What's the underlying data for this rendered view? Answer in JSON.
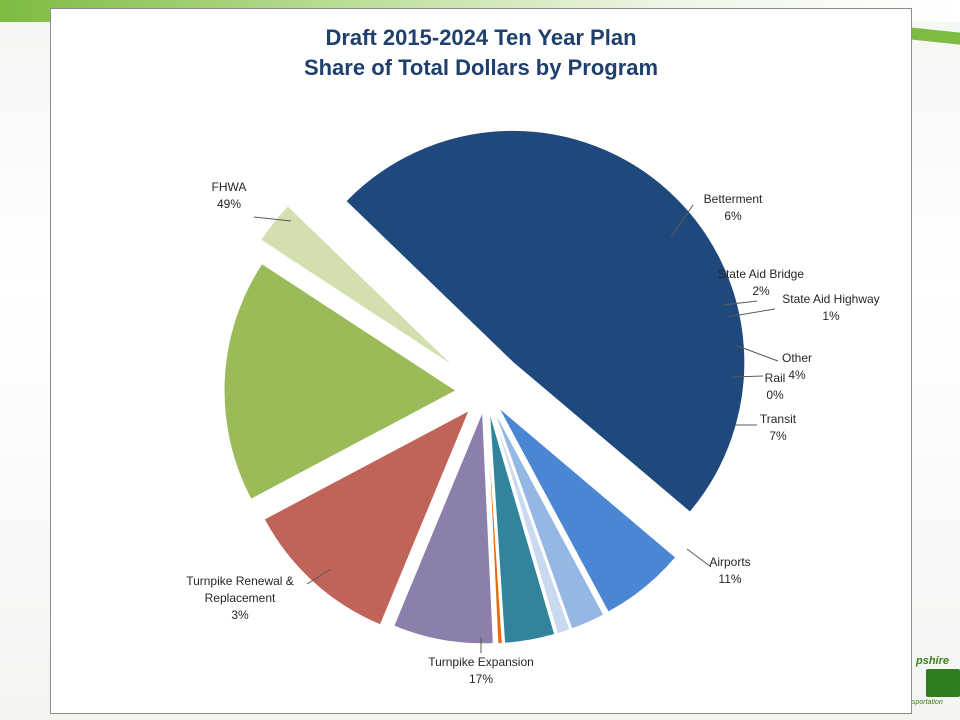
{
  "chart_data": {
    "type": "pie",
    "title": "Draft 2015-2024 Ten Year Plan",
    "subtitle": "Share of Total Dollars by Program",
    "slices": [
      {
        "label": "FHWA",
        "pct_label": "49%",
        "value": 49,
        "color": "#1f497d"
      },
      {
        "label": "Betterment",
        "pct_label": "6%",
        "value": 6,
        "color": "#4a86d4"
      },
      {
        "label": "State Aid Bridge",
        "pct_label": "2%",
        "value": 2.4,
        "color": "#95b7e3"
      },
      {
        "label": "State Aid Highway",
        "pct_label": "1%",
        "value": 0.9,
        "color": "#c9d9ef"
      },
      {
        "label": "Other",
        "pct_label": "4%",
        "value": 3.5,
        "color": "#31849b"
      },
      {
        "label": "Rail",
        "pct_label": "0%",
        "value": 0.3,
        "color": "#e46c0a"
      },
      {
        "label": "Transit",
        "pct_label": "7%",
        "value": 7,
        "color": "#8c7fab"
      },
      {
        "label": "Airports",
        "pct_label": "11%",
        "value": 11,
        "color": "#c0645a"
      },
      {
        "label": "Turnpike Expansion",
        "pct_label": "17%",
        "value": 17,
        "color": "#9bbb59"
      },
      {
        "label": "Turnpike Renewal & Replacement",
        "pct_label": "3%",
        "value": 3,
        "color": "#d2e0b0"
      }
    ]
  },
  "logo": {
    "text_top": "pshire",
    "text_bottom": "sportation"
  }
}
